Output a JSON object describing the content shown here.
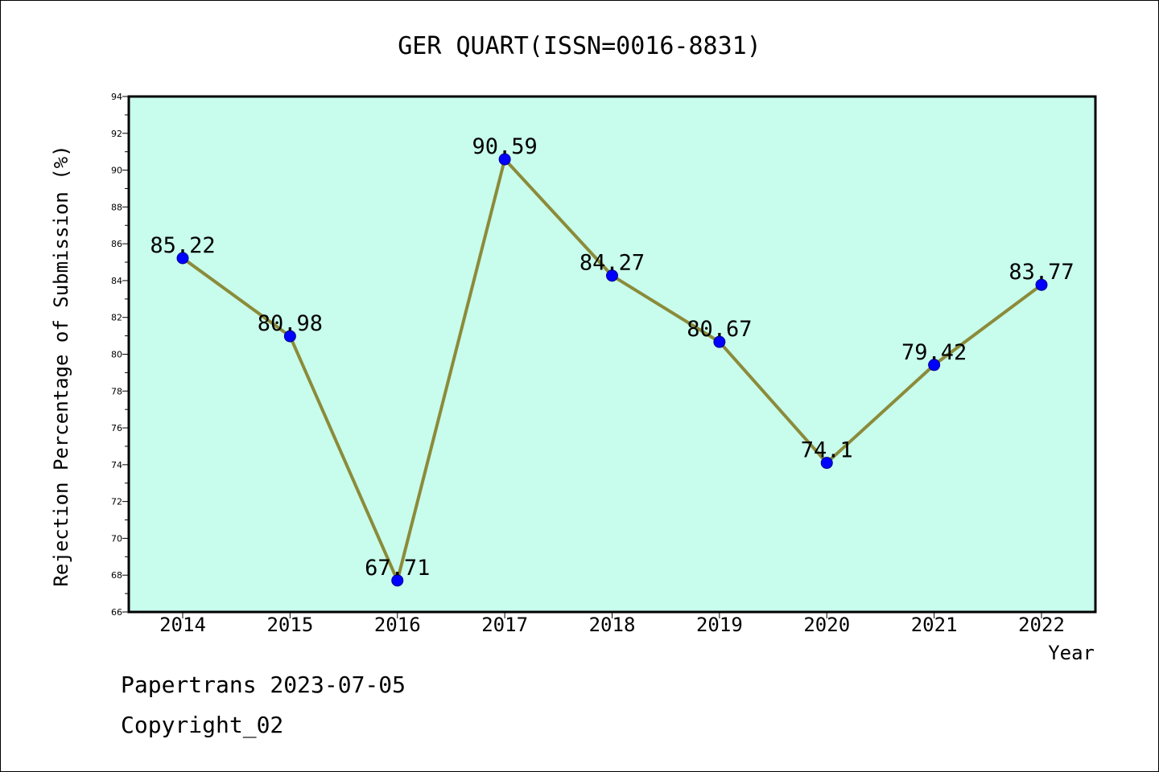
{
  "chart_data": {
    "type": "line",
    "title": "GER QUART(ISSN=0016-8831)",
    "xlabel": "Year",
    "ylabel": "Rejection Percentage of Submission (%)",
    "categories": [
      "2014",
      "2015",
      "2016",
      "2017",
      "2018",
      "2019",
      "2020",
      "2021",
      "2022"
    ],
    "values": [
      85.22,
      80.98,
      67.71,
      90.59,
      84.27,
      80.67,
      74.1,
      79.42,
      83.77
    ],
    "data_labels": [
      "85.22",
      "80.98",
      "67.71",
      "90.59",
      "84.27",
      "80.67",
      "74.1",
      "79.42",
      "83.77"
    ],
    "ylim": [
      66,
      94
    ],
    "yticks": [
      "66",
      "68",
      "70",
      "72",
      "74",
      "76",
      "78",
      "80",
      "82",
      "84",
      "86",
      "88",
      "90",
      "92",
      "94"
    ],
    "grid": false,
    "legend": "none",
    "colors": {
      "plot_background": "#c8fcec",
      "line": "#8b8b3a",
      "marker": "#0000ff"
    }
  },
  "footer": {
    "line1": "Papertrans 2023-07-05",
    "line2": "Copyright_02"
  }
}
